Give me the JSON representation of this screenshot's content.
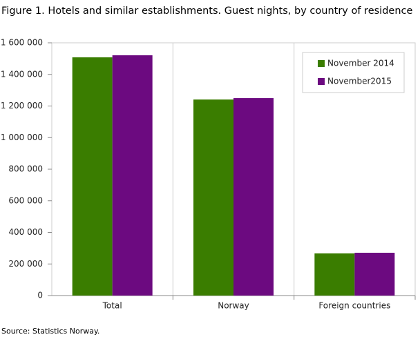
{
  "chart_data": {
    "type": "bar",
    "title": "Figure 1. Hotels and similar establishments. Guest nights, by country of residence",
    "source": "Source: Statistics Norway.",
    "categories": [
      "Total",
      "Norway",
      "Foreign countries"
    ],
    "series": [
      {
        "name": "November 2014",
        "color": "#3a7d00",
        "values": [
          1508000,
          1241000,
          267000
        ]
      },
      {
        "name": "November2015",
        "color": "#6c0a80",
        "values": [
          1521000,
          1250000,
          271000
        ]
      }
    ],
    "ylim": [
      0,
      1600000
    ],
    "yticks": [
      0,
      {
        "value": 200000,
        "label": "200 000"
      },
      {
        "value": 400000,
        "label": "400 000"
      },
      {
        "value": 600000,
        "label": "600 000"
      },
      {
        "value": 800000,
        "label": "800 000"
      },
      {
        "value": 1000000,
        "label": "1 000 000"
      },
      {
        "value": 1200000,
        "label": "1 200 000"
      },
      {
        "value": 1400000,
        "label": "1 400 000"
      },
      {
        "value": 1600000,
        "label": "1 600 000"
      }
    ],
    "legend": "top-right"
  }
}
